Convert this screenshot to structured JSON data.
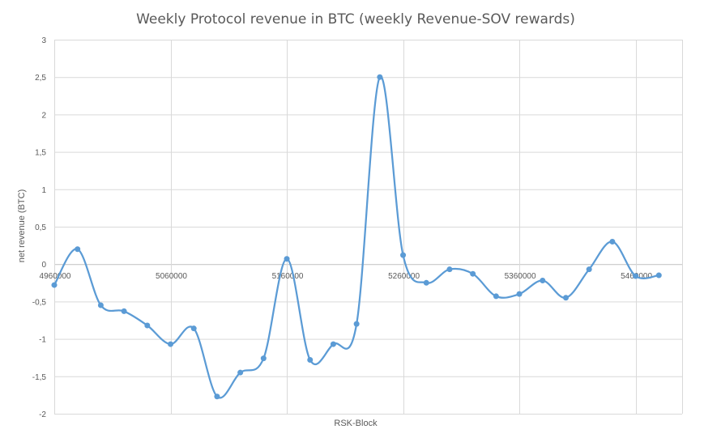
{
  "chart_data": {
    "type": "scatter",
    "title": "Weekly Protocol revenue in BTC (weekly Revenue-SOV rewards)",
    "xlabel": "RSK-Block",
    "ylabel": "net revenue (BTC)",
    "xlim": [
      4960000,
      5500000
    ],
    "ylim": [
      -2,
      3
    ],
    "x_ticks": [
      4960000,
      5060000,
      5160000,
      5260000,
      5360000,
      5460000
    ],
    "x_tick_labels": [
      "4960000",
      "5060000",
      "5160000",
      "5260000",
      "5360000",
      "5460000"
    ],
    "y_ticks": [
      -2,
      -1.5,
      -1,
      -0.5,
      0,
      0.5,
      1,
      1.5,
      2,
      2.5,
      3
    ],
    "y_tick_labels": [
      "-2",
      "-1,5",
      "-1",
      "-0,5",
      "0",
      "0,5",
      "1",
      "1,5",
      "2",
      "2,5",
      "3"
    ],
    "grid": true,
    "smooth": true,
    "series": [
      {
        "name": "net revenue",
        "color": "#5b9bd5",
        "x": [
          4960000,
          4980000,
          5000000,
          5020000,
          5040000,
          5060000,
          5080000,
          5100000,
          5120000,
          5140000,
          5160000,
          5180000,
          5200000,
          5220000,
          5240000,
          5260000,
          5280000,
          5300000,
          5320000,
          5340000,
          5360000,
          5380000,
          5400000,
          5420000,
          5440000,
          5460000,
          5480000
        ],
        "y": [
          -0.28,
          0.2,
          -0.55,
          -0.63,
          -0.82,
          -1.07,
          -0.86,
          -1.77,
          -1.45,
          -1.26,
          0.07,
          -1.28,
          -1.07,
          -0.8,
          2.5,
          0.12,
          -0.25,
          -0.07,
          -0.13,
          -0.43,
          -0.4,
          -0.22,
          -0.45,
          -0.07,
          0.3,
          -0.16,
          -0.15
        ]
      }
    ]
  }
}
